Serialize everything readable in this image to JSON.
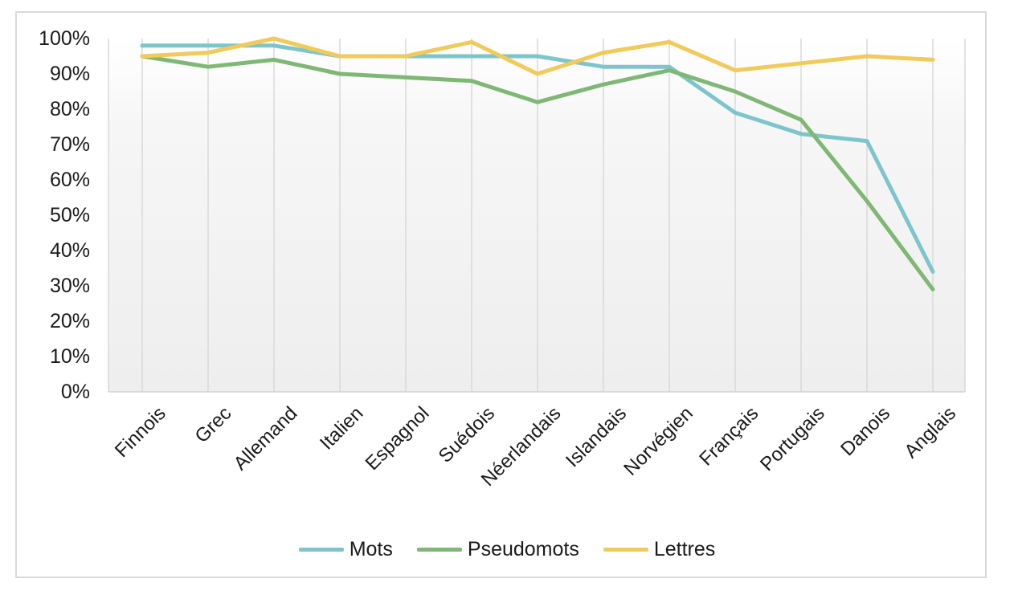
{
  "chart_data": {
    "type": "line",
    "title": "",
    "xlabel": "",
    "ylabel": "",
    "categories": [
      "Finnois",
      "Grec",
      "Allemand",
      "Italien",
      "Espagnol",
      "Suédois",
      "Néerlandais",
      "Islandais",
      "Norvégien",
      "Français",
      "Portugais",
      "Danois",
      "Anglais"
    ],
    "series": [
      {
        "name": "Mots",
        "color": "#7EC5CB",
        "values": [
          98,
          98,
          98,
          95,
          95,
          95,
          95,
          92,
          92,
          79,
          73,
          71,
          34
        ]
      },
      {
        "name": "Pseudomots",
        "color": "#7FB874",
        "values": [
          95,
          92,
          94,
          90,
          89,
          88,
          82,
          87,
          91,
          85,
          77,
          54,
          29
        ]
      },
      {
        "name": "Lettres",
        "color": "#F0CA5B",
        "values": [
          95,
          96,
          100,
          95,
          95,
          99,
          90,
          96,
          99,
          91,
          93,
          95,
          94
        ]
      }
    ],
    "ylim": [
      0,
      100
    ],
    "y_ticks": [
      "0%",
      "10%",
      "20%",
      "30%",
      "40%",
      "50%",
      "60%",
      "70%",
      "80%",
      "90%",
      "100%"
    ],
    "grid": "vertical",
    "legend_position": "bottom",
    "colors": {
      "gridline": "#D9D9D9",
      "axis_line": "#D2D2D2",
      "frame_border": "#D9D9D9",
      "text": "#1A1A1A",
      "plot_bg_top": "#FFFFFF",
      "plot_bg_bottom": "#EEEEEE"
    }
  }
}
